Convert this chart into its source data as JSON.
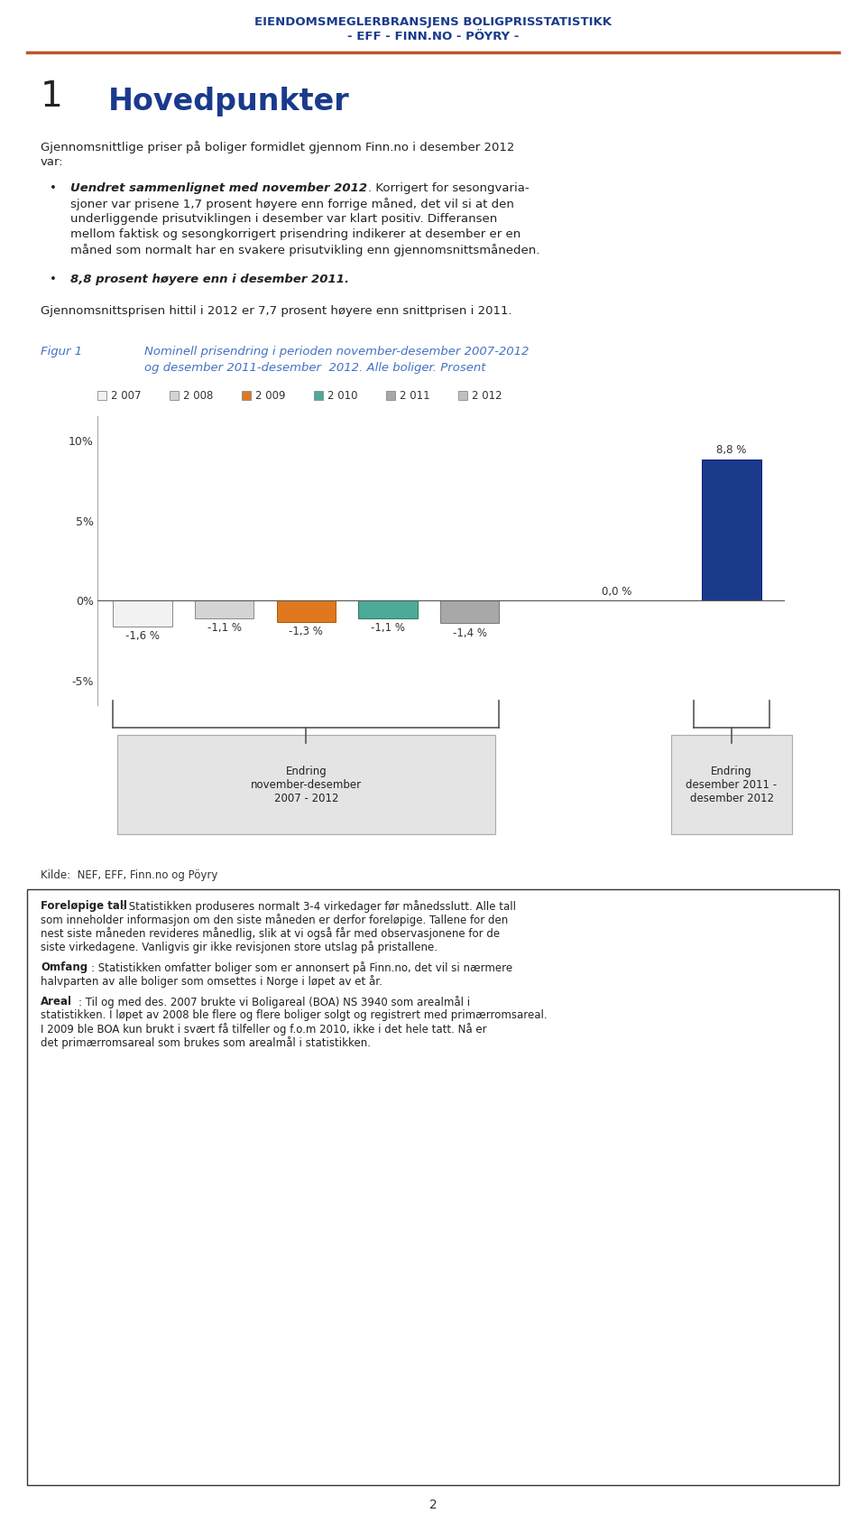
{
  "header_line1": "EIENDOMSMEGLERBRANSJENS BOLIGPRISSTATISTIKK",
  "header_line2": "- EFF - FINN.NO - PÖYRY -",
  "header_color": "#1a3a8c",
  "separator_color": "#c0522a",
  "section_number": "1",
  "section_title": "Hovedpunkter",
  "section_color": "#1a3a8c",
  "body_text1_line1": "Gjennomsnittlige priser på boliger formidlet gjennom Finn.no i desember 2012",
  "body_text1_line2": "var:",
  "bullet1_bold": "Uendret sammenlignet med november 2012",
  "bullet1_rest_lines": [
    ". Korrigert for sesongvaria-",
    "sjoner var prisene 1,7 prosent høyere enn forrige måned, det vil si at den",
    "underliggende prisutviklingen i desember var klart positiv. Differansen",
    "mellom faktisk og sesongkorrigert prisendring indikerer at desember er en",
    "måned som normalt har en svakere prisutvikling enn gjennomsnittsmåneden."
  ],
  "bullet2_bold": "8,8 prosent høyere enn i desember 2011",
  "body_text2": "Gjennomsnittsprisen hittil i 2012 er 7,7 prosent høyere enn snittprisen i 2011.",
  "fig_label": "Figur 1",
  "fig_caption_line1": "Nominell prisendring i perioden november-desember 2007-2012",
  "fig_caption_line2": "og desember 2011-desember  2012. Alle boliger. Prosent",
  "fig_color": "#4472c4",
  "legend_labels": [
    "2 007",
    "2 008",
    "2 009",
    "2 010",
    "2 011",
    "2 012"
  ],
  "bar_values": [
    -1.6,
    -1.1,
    -1.3,
    -1.1,
    -1.4,
    0.0,
    8.8
  ],
  "bar_colors": [
    "#f2f2f2",
    "#d4d4d4",
    "#e07820",
    "#4daa96",
    "#a8a8a8",
    "#c0c0c0",
    "#1a3a8c"
  ],
  "bar_edge_colors": [
    "#888888",
    "#888888",
    "#b05800",
    "#2a7a60",
    "#787878",
    "#888888",
    "#0a1870"
  ],
  "bar_value_labels": [
    "-1,6 %",
    "-1,1 %",
    "-1,3 %",
    "-1,1 %",
    "-1,4 %",
    "0,0 %",
    "8,8 %"
  ],
  "ylim": [
    -6.5,
    11.5
  ],
  "yticks": [
    -5,
    0,
    5,
    10
  ],
  "ytick_labels": [
    "-5%",
    "0%",
    "5%",
    "10%"
  ],
  "bracket1_label": "Endring\nnovember-desember\n2007 - 2012",
  "bracket2_label": "Endring\ndesember 2011 -\ndesember 2012",
  "source_text": "Kilde:  NEF, EFF, Finn.no og Pöyry",
  "footer_para1_bold": "Foreløpige tall",
  "footer_para1_lines": [
    ": Statistikken produseres normalt 3-4 virkedager før månedsslutt. Alle tall",
    "som inneholder informasjon om den siste måneden er derfor foreløpige. Tallene for den",
    "nest siste måneden revideres månedlig, slik at vi også får med observasjonene for de",
    "siste virkedagene. Vanligvis gir ikke revisjonen store utslag på pristallene."
  ],
  "footer_para2_bold": "Omfang",
  "footer_para2_lines": [
    ": Statistikken omfatter boliger som er annonsert på Finn.no, det vil si nærmere",
    "halvparten av alle boliger som omsettes i Norge i løpet av et år."
  ],
  "footer_para3_bold": "Areal",
  "footer_para3_lines": [
    ": Til og med des. 2007 brukte vi Boligareal (BOA) NS 3940 som arealmål i",
    "statistikken. I løpet av 2008 ble flere og flere boliger solgt og registrert med primærromsareal.",
    "I 2009 ble BOA kun brukt i svært få tilfeller og f.o.m 2010, ikke i det hele tatt. Nå er",
    "det primærromsareal som brukes som arealmål i statistikken."
  ],
  "page_number": "2",
  "background_color": "#ffffff"
}
